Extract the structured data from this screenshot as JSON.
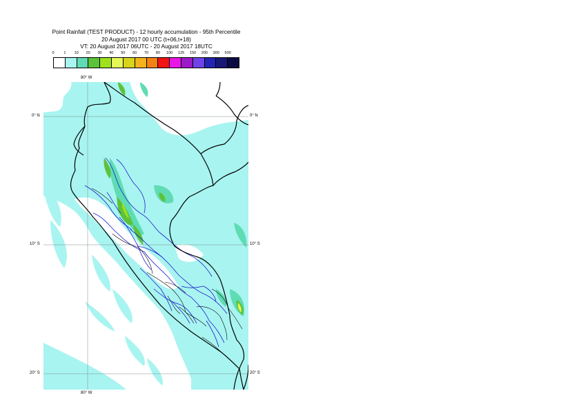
{
  "title": {
    "line1": "Point Rainfall (TEST PRODUCT) - 12 hourly accumulation - 95th Percentile",
    "line2": "20 August 2017 00 UTC (t+06,t+18)",
    "line3": "VT: 20 August 2017 06UTC - 20 August 2017 18UTC"
  },
  "legend": {
    "ticks": [
      "0",
      "1",
      "10",
      "20",
      "30",
      "40",
      "50",
      "60",
      "70",
      "80",
      "100",
      "125",
      "150",
      "200",
      "300",
      "500"
    ],
    "colors": [
      "#ffffff",
      "#a8f4f0",
      "#5fdcb4",
      "#5cc23a",
      "#9ee21e",
      "#e6f75a",
      "#d8d41c",
      "#f4b21c",
      "#f58214",
      "#f01414",
      "#e816e6",
      "#9d1ac8",
      "#6e44e8",
      "#2424b4",
      "#181878",
      "#0c0c44"
    ]
  },
  "map": {
    "labels": {
      "lon_top": "80° W",
      "lon_bottom": "80° W",
      "lat_0_left": "0° N",
      "lat_0_right": "0° N",
      "lat_10_left": "10° S",
      "lat_10_right": "10° S",
      "lat_20_left": "20° S",
      "lat_20_right": "20° S"
    },
    "colors": {
      "ocean_rain": "#a8f4f0",
      "rain_10": "#5fdcb4",
      "rain_20": "#5cc23a",
      "rain_30": "#9ee21e",
      "border": "#000000",
      "regions": "#1a1ad0",
      "grid": "#7a8a8a"
    }
  }
}
